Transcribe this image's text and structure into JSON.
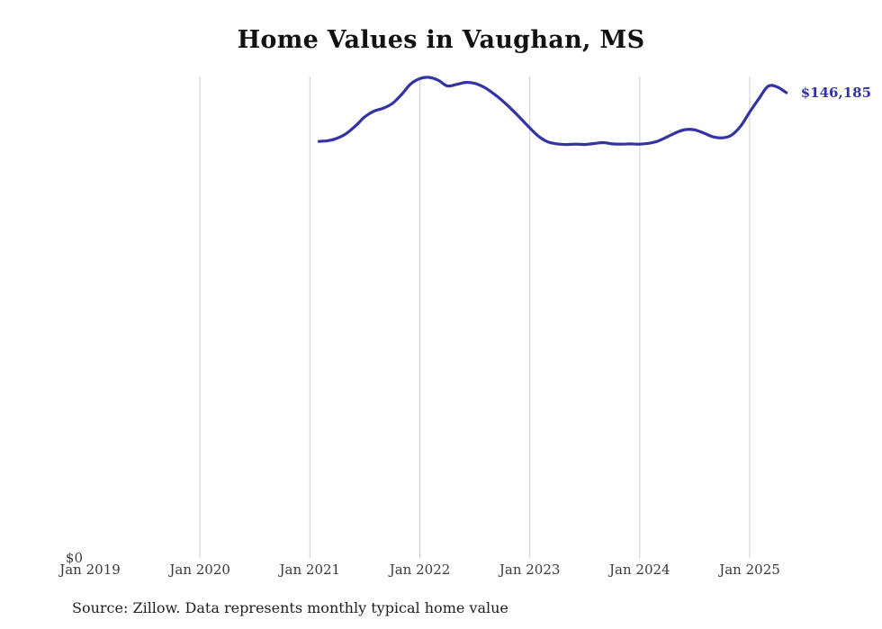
{
  "title": "Home Values in Vaughan, MS",
  "source_note": "Source: Zillow. Data represents monthly typical home value",
  "colors": {
    "line": "#3333a6",
    "gridline": "#cccccc",
    "title_text": "#111111",
    "tick_text": "#3a3a3a",
    "source_text": "#1f1f1f"
  },
  "chart_data": {
    "type": "line",
    "title": "Home Values in Vaughan, MS",
    "x_ticks": [
      "Jan 2019",
      "Jan 2020",
      "Jan 2021",
      "Jan 2022",
      "Jan 2023",
      "Jan 2024",
      "Jan 2025"
    ],
    "y_tick_labels": [
      "$0"
    ],
    "ylim": [
      0,
      155000
    ],
    "grid": "vertical",
    "legend": "none",
    "end_annotation": "$146,185",
    "series": [
      {
        "name": "Monthly typical home value",
        "dates": [
          "2021-02",
          "2021-03",
          "2021-04",
          "2021-05",
          "2021-06",
          "2021-07",
          "2021-08",
          "2021-09",
          "2021-10",
          "2021-11",
          "2021-12",
          "2022-01",
          "2022-02",
          "2022-03",
          "2022-04",
          "2022-05",
          "2022-06",
          "2022-07",
          "2022-08",
          "2022-09",
          "2022-10",
          "2022-11",
          "2022-12",
          "2023-01",
          "2023-02",
          "2023-03",
          "2023-04",
          "2023-05",
          "2023-06",
          "2023-07",
          "2023-08",
          "2023-09",
          "2023-10",
          "2023-11",
          "2023-12",
          "2024-01",
          "2024-02",
          "2024-03",
          "2024-04",
          "2024-05",
          "2024-06",
          "2024-07",
          "2024-08",
          "2024-09",
          "2024-10",
          "2024-11",
          "2024-12",
          "2025-01",
          "2025-02",
          "2025-03",
          "2025-04",
          "2025-05"
        ],
        "values": [
          130900,
          131100,
          131900,
          133400,
          135800,
          138600,
          140400,
          141300,
          142800,
          145600,
          148900,
          150600,
          151000,
          150100,
          148300,
          148800,
          149400,
          149100,
          147900,
          146000,
          143700,
          141000,
          138100,
          135100,
          132400,
          130700,
          130100,
          129900,
          130000,
          129900,
          130200,
          130500,
          130100,
          130000,
          130100,
          130000,
          130300,
          131000,
          132300,
          133700,
          134600,
          134500,
          133500,
          132300,
          132000,
          132800,
          135600,
          140100,
          144300,
          148200,
          148000,
          146185
        ]
      }
    ]
  }
}
